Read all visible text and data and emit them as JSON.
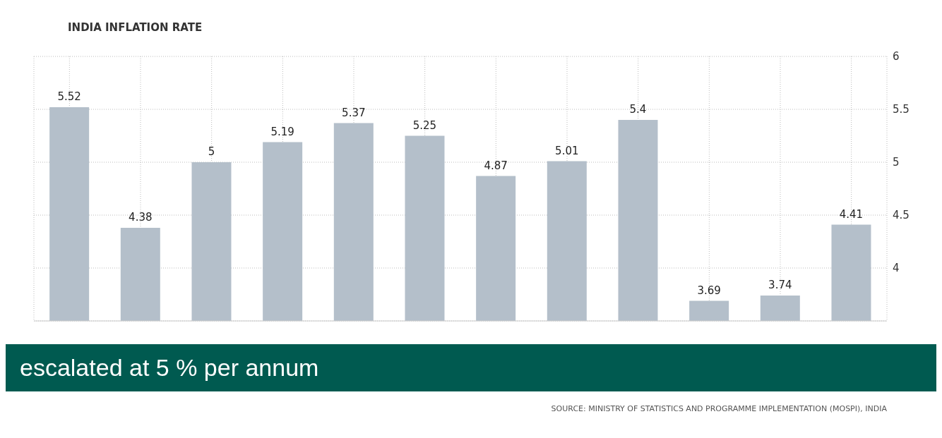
{
  "chart_data": {
    "type": "bar",
    "title": "INDIA INFLATION RATE",
    "categories": [
      null,
      null,
      null,
      null,
      null,
      null,
      null,
      null,
      null,
      null,
      null,
      null
    ],
    "values": [
      5.52,
      4.38,
      5,
      5.19,
      5.37,
      5.25,
      4.87,
      5.01,
      5.4,
      3.69,
      3.74,
      4.41
    ],
    "color": "#b4bfca",
    "ylim": [
      3.5,
      6
    ],
    "yticks": [
      4,
      4.5,
      5,
      5.5,
      6
    ],
    "grid": true,
    "data_labels": true,
    "annotations": [
      "escalated at 5 % per annum",
      "SOURCE: MINISTRY OF STATISTICS AND PROGRAMME IMPLEMENTATION (MOSPI), INDIA"
    ]
  }
}
